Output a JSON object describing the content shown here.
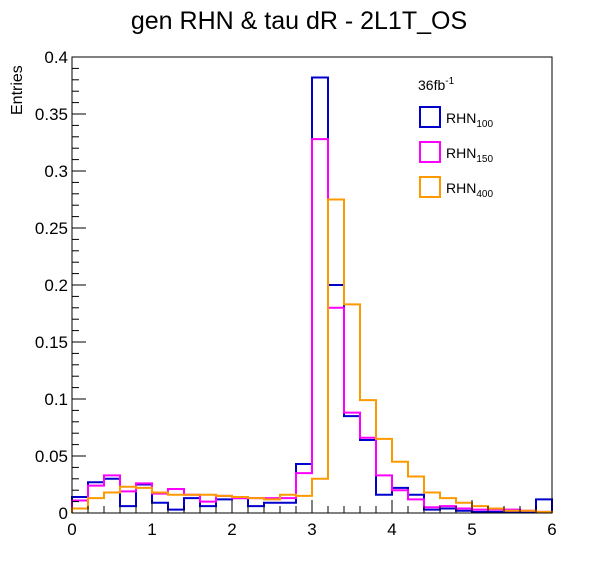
{
  "chart_data": {
    "type": "line",
    "title": "gen RHN & tau dR - 2L1T_OS",
    "xlabel": "",
    "ylabel": "Entries",
    "xlim": [
      0,
      6
    ],
    "ylim": [
      0,
      0.4
    ],
    "xticks": [
      "0",
      "1",
      "2",
      "3",
      "4",
      "5",
      "6"
    ],
    "yticks": [
      "0",
      "0.05",
      "0.1",
      "0.15",
      "0.2",
      "0.25",
      "0.3",
      "0.35",
      "0.4"
    ],
    "bin_edges": [
      0,
      0.2,
      0.4,
      0.6,
      0.8,
      1.0,
      1.2,
      1.4,
      1.6,
      1.8,
      2.0,
      2.2,
      2.4,
      2.6,
      2.8,
      3.0,
      3.2,
      3.4,
      3.6,
      3.8,
      4.0,
      4.2,
      4.4,
      4.6,
      4.8,
      5.0,
      5.2,
      5.4,
      5.6,
      5.8,
      6.0
    ],
    "annotation": {
      "base": "36fb",
      "sup": "-1"
    },
    "series": [
      {
        "name": "RHN",
        "subscript": "100",
        "color": "#0000cc",
        "values": [
          0.014,
          0.027,
          0.03,
          0.006,
          0.025,
          0.009,
          0.003,
          0.013,
          0.006,
          0.012,
          0.013,
          0.006,
          0.009,
          0.009,
          0.043,
          0.382,
          0.2,
          0.085,
          0.064,
          0.016,
          0.022,
          0.016,
          0.003,
          0.004,
          0.002,
          0.001,
          0.001,
          0.001,
          0.001,
          0.012
        ]
      },
      {
        "name": "RHN",
        "subscript": "150",
        "color": "#ff00ff",
        "values": [
          0.011,
          0.024,
          0.033,
          0.019,
          0.026,
          0.017,
          0.021,
          0.016,
          0.01,
          0.015,
          0.013,
          0.013,
          0.013,
          0.013,
          0.035,
          0.328,
          0.18,
          0.088,
          0.066,
          0.033,
          0.02,
          0.012,
          0.005,
          0.006,
          0.004,
          0.003,
          0.003,
          0.003,
          0.002,
          0.001
        ]
      },
      {
        "name": "RHN",
        "subscript": "400",
        "color": "#ff9900",
        "values": [
          0.004,
          0.013,
          0.018,
          0.023,
          0.022,
          0.018,
          0.016,
          0.016,
          0.016,
          0.015,
          0.014,
          0.013,
          0.012,
          0.016,
          0.015,
          0.03,
          0.275,
          0.183,
          0.099,
          0.065,
          0.045,
          0.032,
          0.018,
          0.013,
          0.009,
          0.006,
          0.004,
          0.002,
          0.002,
          0.001
        ]
      }
    ],
    "legend": "top-right",
    "grid": false
  }
}
